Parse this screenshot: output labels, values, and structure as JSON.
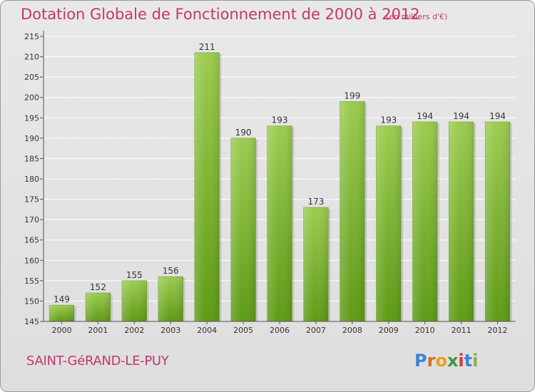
{
  "title": "Dotation Globale de Fonctionnement de 2000 à 2012",
  "unit_note": "(en milliers d'€)",
  "commune": "SAINT-GéRAND-LE-PUY",
  "logo": {
    "letters": [
      "P",
      "r",
      "o",
      "x",
      "i",
      "t",
      "i"
    ],
    "colors": [
      "#3a86d6",
      "#e06a1c",
      "#e8a21e",
      "#3a9a3a",
      "#d23a3a",
      "#3a86d6",
      "#7ab648"
    ]
  },
  "colors": {
    "accent": "#c8356a",
    "bar_light": "#9ccc50",
    "bar_dark": "#5e9a16",
    "axis": "#555555",
    "grid": "#ffffff"
  },
  "chart_data": {
    "type": "bar",
    "categories": [
      "2000",
      "2001",
      "2002",
      "2003",
      "2004",
      "2005",
      "2006",
      "2007",
      "2008",
      "2009",
      "2010",
      "2011",
      "2012"
    ],
    "values": [
      149,
      152,
      155,
      156,
      211,
      190,
      193,
      173,
      199,
      193,
      194,
      194,
      194
    ],
    "ylim": [
      145,
      215
    ],
    "yticks": [
      145,
      150,
      155,
      160,
      165,
      170,
      175,
      180,
      185,
      190,
      195,
      200,
      205,
      210,
      215
    ],
    "grid": true,
    "title": "Dotation Globale de Fonctionnement de 2000 à 2012",
    "xlabel": "",
    "ylabel": ""
  }
}
